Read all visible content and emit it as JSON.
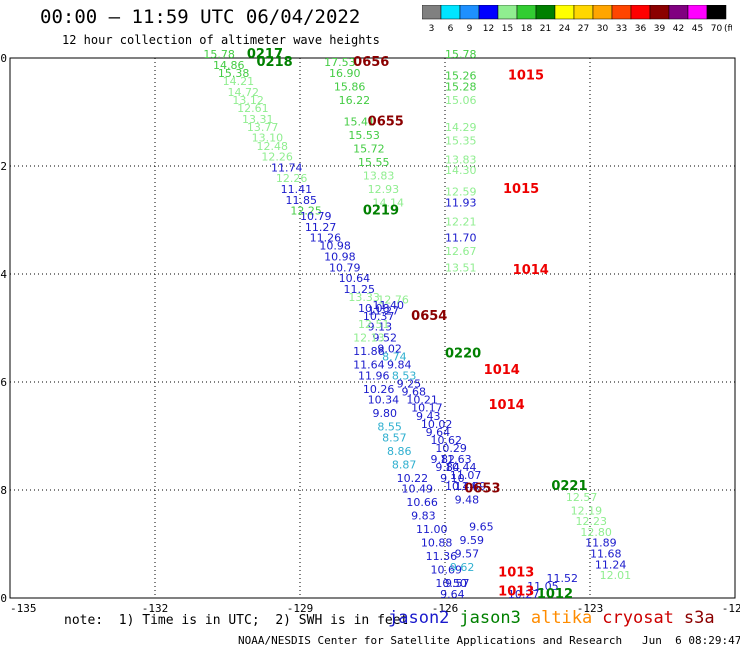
{
  "header": {
    "title": "00:00 – 11:59 UTC 06/04/2022",
    "subtitle": "12 hour collection of altimeter wave heights"
  },
  "colorbar": {
    "unit": "(ft)",
    "ticks": [
      "3",
      "6",
      "9",
      "12",
      "15",
      "18",
      "21",
      "24",
      "27",
      "30",
      "33",
      "36",
      "39",
      "42",
      "45",
      "70"
    ],
    "colors": [
      "#808080",
      "#00e5ff",
      "#1e90ff",
      "#0000ff",
      "#90ee90",
      "#32cd32",
      "#008000",
      "#ffff00",
      "#ffd700",
      "#ffa500",
      "#ff4500",
      "#ff0000",
      "#8b0000",
      "#800080",
      "#ff00ff",
      "#000000"
    ]
  },
  "note": "note:  1) Time is in UTC;  2) SWH is in feet",
  "credit": "NOAA/NESDIS Center for Satellite Applications and Research   Jun  6 08:29:47 UTC 2022",
  "legend": [
    {
      "name": "jason2",
      "color": "#1a1acc"
    },
    {
      "name": "jason3",
      "color": "#008000"
    },
    {
      "name": "altika",
      "color": "#ff8c00"
    },
    {
      "name": "cryosat",
      "color": "#cc0000"
    },
    {
      "name": "s3a",
      "color": "#8b0000"
    }
  ],
  "chart_data": {
    "type": "scatter",
    "xlim": [
      -135,
      -120
    ],
    "ylim": [
      50,
      40
    ],
    "x_ticks": [
      "-135",
      "-132",
      "-129",
      "-126",
      "-123",
      "-120"
    ],
    "y_ticks": [
      "40",
      "42",
      "44",
      "46",
      "48",
      "50"
    ],
    "grid": true,
    "colors": {
      "dark_blue": "#1a1acc",
      "green": "#44cc44",
      "light_green": "#90ee90",
      "cyan": "#30b0d0",
      "dark_green": "#008000",
      "red": "#ee0000",
      "maroon": "#8b0000"
    },
    "points": [
      {
        "lon": -131.0,
        "lat": 40.0,
        "v": "15.78",
        "c": "green"
      },
      {
        "lon": -130.8,
        "lat": 40.2,
        "v": "14.86",
        "c": "green"
      },
      {
        "lon": -130.7,
        "lat": 40.35,
        "v": "15.38",
        "c": "green"
      },
      {
        "lon": -130.6,
        "lat": 40.5,
        "v": "14.21",
        "c": "light_green"
      },
      {
        "lon": -130.5,
        "lat": 40.7,
        "v": "14.72",
        "c": "light_green"
      },
      {
        "lon": -130.4,
        "lat": 40.85,
        "v": "13.12",
        "c": "light_green"
      },
      {
        "lon": -130.3,
        "lat": 41.0,
        "v": "12.61",
        "c": "light_green"
      },
      {
        "lon": -130.2,
        "lat": 41.2,
        "v": "13.31",
        "c": "light_green"
      },
      {
        "lon": -130.1,
        "lat": 41.35,
        "v": "13.77",
        "c": "light_green"
      },
      {
        "lon": -130.0,
        "lat": 41.55,
        "v": "13.10",
        "c": "light_green"
      },
      {
        "lon": -129.9,
        "lat": 41.7,
        "v": "12.48",
        "c": "light_green"
      },
      {
        "lon": -129.8,
        "lat": 41.9,
        "v": "12.26",
        "c": "light_green"
      },
      {
        "lon": -129.6,
        "lat": 42.1,
        "v": "11.74",
        "c": "dark_blue"
      },
      {
        "lon": -129.5,
        "lat": 42.3,
        "v": "12.26",
        "c": "light_green"
      },
      {
        "lon": -129.4,
        "lat": 42.5,
        "v": "11.41",
        "c": "dark_blue"
      },
      {
        "lon": -129.3,
        "lat": 42.7,
        "v": "11.85",
        "c": "dark_blue"
      },
      {
        "lon": -129.2,
        "lat": 42.9,
        "v": "12.25",
        "c": "green"
      },
      {
        "lon": -129.0,
        "lat": 43.0,
        "v": "10.79",
        "c": "dark_blue"
      },
      {
        "lon": -128.9,
        "lat": 43.2,
        "v": "11.27",
        "c": "dark_blue"
      },
      {
        "lon": -128.8,
        "lat": 43.4,
        "v": "11.26",
        "c": "dark_blue"
      },
      {
        "lon": -128.6,
        "lat": 43.55,
        "v": "10.98",
        "c": "dark_blue"
      },
      {
        "lon": -128.5,
        "lat": 43.75,
        "v": "10.98",
        "c": "dark_blue"
      },
      {
        "lon": -128.4,
        "lat": 43.95,
        "v": "10.79",
        "c": "dark_blue"
      },
      {
        "lon": -128.2,
        "lat": 44.15,
        "v": "10.64",
        "c": "dark_blue"
      },
      {
        "lon": -128.1,
        "lat": 44.35,
        "v": "11.25",
        "c": "dark_blue"
      },
      {
        "lon": -128.0,
        "lat": 44.5,
        "v": "13.33",
        "c": "light_green"
      },
      {
        "lon": -127.8,
        "lat": 44.7,
        "v": "10.08",
        "c": "dark_blue"
      },
      {
        "lon": -127.7,
        "lat": 44.85,
        "v": "10.37",
        "c": "dark_blue"
      },
      {
        "lon": -127.6,
        "lat": 45.05,
        "v": "9.13",
        "c": "dark_blue"
      },
      {
        "lon": -127.5,
        "lat": 45.25,
        "v": "9.52",
        "c": "dark_blue"
      },
      {
        "lon": -127.4,
        "lat": 45.45,
        "v": "9.02",
        "c": "dark_blue"
      },
      {
        "lon": -127.3,
        "lat": 45.6,
        "v": "8.74",
        "c": "cyan"
      },
      {
        "lon": -127.2,
        "lat": 45.75,
        "v": "9.84",
        "c": "dark_blue"
      },
      {
        "lon": -127.1,
        "lat": 45.95,
        "v": "8.53",
        "c": "cyan"
      },
      {
        "lon": -127.0,
        "lat": 46.1,
        "v": "9.25",
        "c": "dark_blue"
      },
      {
        "lon": -126.9,
        "lat": 46.25,
        "v": "9.68",
        "c": "dark_blue"
      },
      {
        "lon": -126.8,
        "lat": 46.4,
        "v": "10.21",
        "c": "dark_blue"
      },
      {
        "lon": -126.7,
        "lat": 46.55,
        "v": "10.17",
        "c": "dark_blue"
      },
      {
        "lon": -126.6,
        "lat": 46.7,
        "v": "9.43",
        "c": "dark_blue"
      },
      {
        "lon": -126.5,
        "lat": 46.85,
        "v": "10.02",
        "c": "dark_blue"
      },
      {
        "lon": -126.4,
        "lat": 47.0,
        "v": "9.64",
        "c": "dark_blue"
      },
      {
        "lon": -126.3,
        "lat": 47.15,
        "v": "10.62",
        "c": "dark_blue"
      },
      {
        "lon": -126.2,
        "lat": 47.3,
        "v": "10.29",
        "c": "dark_blue"
      },
      {
        "lon": -126.1,
        "lat": 47.5,
        "v": "11.63",
        "c": "dark_blue"
      },
      {
        "lon": -126.0,
        "lat": 47.65,
        "v": "10.44",
        "c": "dark_blue"
      },
      {
        "lon": -125.9,
        "lat": 47.8,
        "v": "11.07",
        "c": "dark_blue"
      },
      {
        "lon": -125.8,
        "lat": 48.0,
        "v": "11.69",
        "c": "dark_blue"
      },
      {
        "lon": -127.4,
        "lat": 44.55,
        "v": "12.76",
        "c": "light_green"
      },
      {
        "lon": -127.5,
        "lat": 44.65,
        "v": "11.40",
        "c": "dark_blue"
      },
      {
        "lon": -127.6,
        "lat": 44.75,
        "v": "11.27",
        "c": "dark_blue"
      },
      {
        "lon": -127.8,
        "lat": 45.0,
        "v": "12.51",
        "c": "light_green"
      },
      {
        "lon": -127.9,
        "lat": 45.25,
        "v": "12.13",
        "c": "light_green"
      },
      {
        "lon": -127.9,
        "lat": 45.5,
        "v": "11.86",
        "c": "dark_blue"
      },
      {
        "lon": -127.9,
        "lat": 45.75,
        "v": "11.64",
        "c": "dark_blue"
      },
      {
        "lon": -127.8,
        "lat": 45.95,
        "v": "11.96",
        "c": "dark_blue"
      },
      {
        "lon": -127.7,
        "lat": 46.2,
        "v": "10.26",
        "c": "dark_blue"
      },
      {
        "lon": -127.6,
        "lat": 46.4,
        "v": "10.34",
        "c": "dark_blue"
      },
      {
        "lon": -127.5,
        "lat": 46.65,
        "v": "9.80",
        "c": "dark_blue"
      },
      {
        "lon": -127.4,
        "lat": 46.9,
        "v": "8.55",
        "c": "cyan"
      },
      {
        "lon": -127.3,
        "lat": 47.1,
        "v": "8.57",
        "c": "cyan"
      },
      {
        "lon": -127.2,
        "lat": 47.35,
        "v": "8.86",
        "c": "cyan"
      },
      {
        "lon": -127.1,
        "lat": 47.6,
        "v": "8.87",
        "c": "cyan"
      },
      {
        "lon": -127.0,
        "lat": 47.85,
        "v": "10.22",
        "c": "dark_blue"
      },
      {
        "lon": -126.9,
        "lat": 48.05,
        "v": "10.49",
        "c": "dark_blue"
      },
      {
        "lon": -126.8,
        "lat": 48.3,
        "v": "10.66",
        "c": "dark_blue"
      },
      {
        "lon": -126.7,
        "lat": 48.55,
        "v": "9.83",
        "c": "dark_blue"
      },
      {
        "lon": -126.6,
        "lat": 48.8,
        "v": "11.00",
        "c": "dark_blue"
      },
      {
        "lon": -126.5,
        "lat": 49.05,
        "v": "10.88",
        "c": "dark_blue"
      },
      {
        "lon": -126.4,
        "lat": 49.3,
        "v": "11.36",
        "c": "dark_blue"
      },
      {
        "lon": -126.3,
        "lat": 49.55,
        "v": "10.69",
        "c": "dark_blue"
      },
      {
        "lon": -126.2,
        "lat": 49.8,
        "v": "10.50",
        "c": "dark_blue"
      },
      {
        "lon": -126.1,
        "lat": 50.0,
        "v": "9.64",
        "c": "dark_blue"
      }
    ],
    "times": [
      {
        "lon": -130.1,
        "lat": 40.0,
        "v": "0217",
        "c": "dark_green"
      },
      {
        "lon": -129.9,
        "lat": 40.15,
        "v": "0218",
        "c": "dark_green"
      },
      {
        "lon": -127.9,
        "lat": 40.15,
        "v": "0656",
        "c": "maroon"
      },
      {
        "lon": -127.6,
        "lat": 41.25,
        "v": "0655",
        "c": "maroon"
      },
      {
        "lon": -127.7,
        "lat": 42.9,
        "v": "0219",
        "c": "dark_green"
      },
      {
        "lon": -126.7,
        "lat": 44.85,
        "v": "0654",
        "c": "maroon"
      },
      {
        "lon": -126.0,
        "lat": 45.55,
        "v": "0220",
        "c": "dark_green"
      },
      {
        "lon": -125.6,
        "lat": 48.05,
        "v": "0653",
        "c": "maroon"
      },
      {
        "lon": -123.8,
        "lat": 48.0,
        "v": "0221",
        "c": "dark_green"
      },
      {
        "lon": -124.7,
        "lat": 40.4,
        "v": "1015",
        "c": "red"
      },
      {
        "lon": -124.8,
        "lat": 42.5,
        "v": "1015",
        "c": "red"
      },
      {
        "lon": -124.6,
        "lat": 44.0,
        "v": "1014",
        "c": "red"
      },
      {
        "lon": -125.2,
        "lat": 45.85,
        "v": "1014",
        "c": "red"
      },
      {
        "lon": -125.1,
        "lat": 46.5,
        "v": "1014",
        "c": "red"
      },
      {
        "lon": -124.9,
        "lat": 49.6,
        "v": "1013",
        "c": "red"
      },
      {
        "lon": -124.9,
        "lat": 49.95,
        "v": "1013",
        "c": "red"
      },
      {
        "lon": -124.1,
        "lat": 50.0,
        "v": "1012",
        "c": "dark_green"
      }
    ],
    "track2": [
      {
        "lon": -126.0,
        "lat": 40.0,
        "v": "15.78",
        "c": "green"
      },
      {
        "lon": -126.0,
        "lat": 40.4,
        "v": "15.26",
        "c": "green"
      },
      {
        "lon": -126.0,
        "lat": 40.6,
        "v": "15.28",
        "c": "green"
      },
      {
        "lon": -126.0,
        "lat": 40.85,
        "v": "15.06",
        "c": "light_green"
      },
      {
        "lon": -126.0,
        "lat": 41.35,
        "v": "14.29",
        "c": "light_green"
      },
      {
        "lon": -126.0,
        "lat": 41.6,
        "v": "15.35",
        "c": "light_green"
      },
      {
        "lon": -126.0,
        "lat": 41.95,
        "v": "13.83",
        "c": "light_green"
      },
      {
        "lon": -126.0,
        "lat": 42.15,
        "v": "14.30",
        "c": "light_green"
      },
      {
        "lon": -126.0,
        "lat": 42.55,
        "v": "12.59",
        "c": "light_green"
      },
      {
        "lon": -126.0,
        "lat": 42.75,
        "v": "11.93",
        "c": "dark_blue"
      },
      {
        "lon": -126.0,
        "lat": 43.1,
        "v": "12.21",
        "c": "light_green"
      },
      {
        "lon": -126.0,
        "lat": 43.4,
        "v": "11.70",
        "c": "dark_blue"
      },
      {
        "lon": -126.0,
        "lat": 43.65,
        "v": "12.67",
        "c": "light_green"
      },
      {
        "lon": -126.0,
        "lat": 43.95,
        "v": "13.51",
        "c": "light_green"
      }
    ],
    "track3": [
      {
        "lon": -128.5,
        "lat": 40.15,
        "v": "17.53",
        "c": "green"
      },
      {
        "lon": -128.4,
        "lat": 40.35,
        "v": "16.90",
        "c": "green"
      },
      {
        "lon": -128.3,
        "lat": 40.6,
        "v": "15.86",
        "c": "green"
      },
      {
        "lon": -128.2,
        "lat": 40.85,
        "v": "16.22",
        "c": "green"
      },
      {
        "lon": -128.1,
        "lat": 41.25,
        "v": "15.41",
        "c": "green"
      },
      {
        "lon": -128.0,
        "lat": 41.5,
        "v": "15.53",
        "c": "green"
      },
      {
        "lon": -127.9,
        "lat": 41.75,
        "v": "15.72",
        "c": "green"
      },
      {
        "lon": -127.8,
        "lat": 42.0,
        "v": "15.55",
        "c": "green"
      },
      {
        "lon": -127.7,
        "lat": 42.25,
        "v": "13.83",
        "c": "light_green"
      },
      {
        "lon": -127.6,
        "lat": 42.5,
        "v": "12.93",
        "c": "light_green"
      },
      {
        "lon": -127.5,
        "lat": 42.75,
        "v": "14.14",
        "c": "light_green"
      }
    ],
    "track4": [
      {
        "lon": -123.5,
        "lat": 48.2,
        "v": "12.57",
        "c": "light_green"
      },
      {
        "lon": -123.4,
        "lat": 48.45,
        "v": "12.19",
        "c": "light_green"
      },
      {
        "lon": -123.3,
        "lat": 48.65,
        "v": "12.23",
        "c": "light_green"
      },
      {
        "lon": -123.2,
        "lat": 48.85,
        "v": "12.80",
        "c": "light_green"
      },
      {
        "lon": -123.1,
        "lat": 49.05,
        "v": "11.89",
        "c": "dark_blue"
      },
      {
        "lon": -123.0,
        "lat": 49.25,
        "v": "11.68",
        "c": "dark_blue"
      },
      {
        "lon": -122.9,
        "lat": 49.45,
        "v": "11.24",
        "c": "dark_blue"
      },
      {
        "lon": -122.8,
        "lat": 49.65,
        "v": "12.01",
        "c": "light_green"
      },
      {
        "lon": -123.9,
        "lat": 49.7,
        "v": "11.52",
        "c": "dark_blue"
      },
      {
        "lon": -124.3,
        "lat": 49.85,
        "v": "11.05",
        "c": "dark_blue"
      },
      {
        "lon": -124.7,
        "lat": 50.0,
        "v": "10.27",
        "c": "dark_blue"
      },
      {
        "lon": -125.5,
        "lat": 48.75,
        "v": "9.65",
        "c": "dark_blue"
      },
      {
        "lon": -125.7,
        "lat": 49.0,
        "v": "9.59",
        "c": "dark_blue"
      },
      {
        "lon": -125.8,
        "lat": 49.25,
        "v": "9.57",
        "c": "dark_blue"
      },
      {
        "lon": -125.9,
        "lat": 49.5,
        "v": "9.62",
        "c": "cyan"
      },
      {
        "lon": -126.0,
        "lat": 49.8,
        "v": "9.57",
        "c": "dark_blue"
      },
      {
        "lon": -126.3,
        "lat": 47.5,
        "v": "9.82",
        "c": "dark_blue"
      },
      {
        "lon": -126.2,
        "lat": 47.65,
        "v": "9.84",
        "c": "dark_blue"
      },
      {
        "lon": -126.1,
        "lat": 47.85,
        "v": "9.10",
        "c": "dark_blue"
      },
      {
        "lon": -126.0,
        "lat": 48.0,
        "v": "10.44",
        "c": "dark_blue"
      },
      {
        "lon": -125.8,
        "lat": 48.25,
        "v": "9.48",
        "c": "dark_blue"
      }
    ]
  }
}
